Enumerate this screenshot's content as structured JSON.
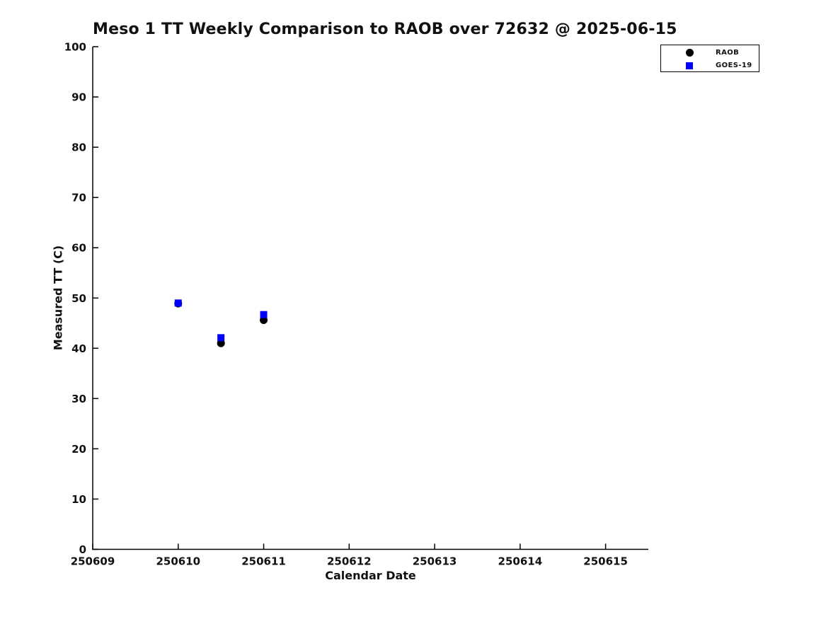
{
  "chart_data": {
    "type": "scatter",
    "title": "Meso 1 TT Weekly Comparison to RAOB over 72632 @ 2025-06-15",
    "xlabel": "Calendar Date",
    "ylabel": "Measured TT (C)",
    "xlim": [
      250609,
      250615.5
    ],
    "ylim": [
      0,
      100
    ],
    "x_ticks": [
      250609,
      250610,
      250611,
      250612,
      250613,
      250614,
      250615
    ],
    "y_ticks": [
      0,
      10,
      20,
      30,
      40,
      50,
      60,
      70,
      80,
      90,
      100
    ],
    "grid": false,
    "legend_position": "top-right",
    "tick_direction": "in",
    "series": [
      {
        "name": "RAOB",
        "marker": "circle",
        "color": "#000000",
        "x": [
          250610.0,
          250610.5,
          250611.0
        ],
        "y": [
          48.9,
          41.0,
          45.6
        ]
      },
      {
        "name": "GOES-19",
        "marker": "square",
        "color": "#0000ff",
        "x": [
          250610.0,
          250610.5,
          250611.0
        ],
        "y": [
          49.0,
          42.1,
          46.7
        ]
      }
    ]
  },
  "colors": {
    "axis": "#000000",
    "text": "#111111",
    "background": "#ffffff"
  }
}
